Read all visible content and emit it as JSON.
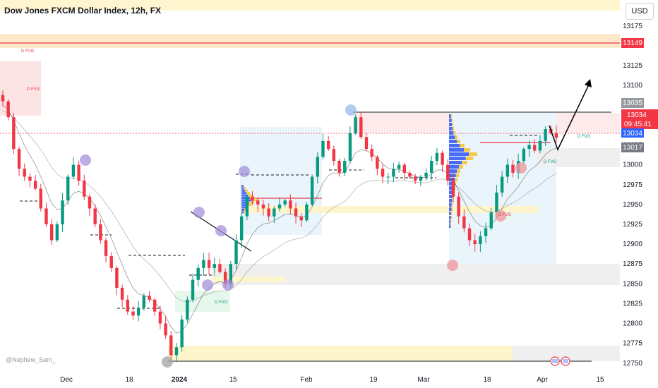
{
  "header": {
    "title": "Dow Jones FXCM Dollar Index, 12h, FX",
    "currency": "USD"
  },
  "watermark": "@Nephew_Sam_",
  "colors": {
    "up": "#089981",
    "down": "#f23645",
    "fvg_label": "#f23645",
    "fvg_label_green": "#089981",
    "resistance": "#f23645",
    "arrow": "#000000"
  },
  "chart_data": {
    "type": "candlestick",
    "title": "Dow Jones FXCM Dollar Index, 12h, FX",
    "ylim": [
      12740,
      13190
    ],
    "y_ticks": [
      12750,
      12775,
      12800,
      12825,
      12850,
      12875,
      12900,
      12925,
      12950,
      12975,
      13000,
      13025,
      13050,
      13075,
      13100,
      13125,
      13149,
      13175
    ],
    "x_ticks": [
      "Dec",
      "18",
      "2024",
      "15",
      "Feb",
      "19",
      "Mar",
      "18",
      "Apr",
      "15"
    ],
    "price_labels": {
      "last": {
        "value": "13034",
        "countdown": "09:45:41",
        "sub": "13034"
      },
      "high_marker": "13035",
      "low_marker": "13017",
      "resistance": "13149"
    },
    "annotations": [
      "D FVG",
      "D FVG",
      "D FVG",
      "D FVG",
      "D FVG",
      "D FVG"
    ],
    "grid": false,
    "ohlc_close_path": [
      13080,
      13060,
      13020,
      12995,
      12985,
      12980,
      12970,
      12945,
      12925,
      12905,
      12925,
      12955,
      12985,
      13000,
      12980,
      12960,
      12945,
      12925,
      12905,
      12885,
      12870,
      12845,
      12830,
      12815,
      12810,
      12820,
      12835,
      12830,
      12815,
      12800,
      12785,
      12760,
      12770,
      12805,
      12830,
      12855,
      12870,
      12880,
      12870,
      12875,
      12865,
      12850,
      12875,
      12905,
      12935,
      12960,
      12955,
      12950,
      12945,
      12935,
      12945,
      12950,
      12955,
      12945,
      12935,
      12930,
      12950,
      12985,
      13010,
      13030,
      13020,
      13005,
      12990,
      13005,
      13040,
      13060,
      13035,
      13020,
      13010,
      12995,
      12985,
      12985,
      12995,
      13000,
      12990,
      12985,
      12980,
      12985,
      12990,
      13005,
      13015,
      13000,
      12980,
      12960,
      12935,
      12920,
      12905,
      12900,
      12910,
      12920,
      12940,
      12965,
      12985,
      13000,
      12990,
      13005,
      13020,
      13025,
      13018,
      13030,
      13045,
      13040,
      13034
    ]
  }
}
